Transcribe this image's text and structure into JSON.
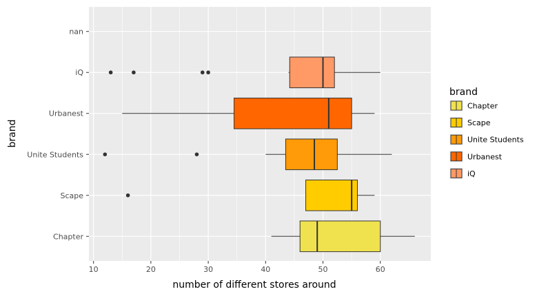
{
  "chart_data": {
    "type": "boxplot",
    "orientation": "horizontal",
    "xlabel": "number of different stores around",
    "ylabel": "brand",
    "xlim": [
      9.2,
      68.8
    ],
    "x_ticks": [
      10,
      20,
      30,
      40,
      50,
      60
    ],
    "grid": true,
    "legend": {
      "title": "brand",
      "position": "right"
    },
    "categories": [
      "Chapter",
      "Scape",
      "Unite Students",
      "Urbanest",
      "iQ",
      "nan"
    ],
    "legend_entries": [
      {
        "label": "Chapter",
        "color": "#F0E24F"
      },
      {
        "label": "Scape",
        "color": "#FFCC00"
      },
      {
        "label": "Unite Students",
        "color": "#FF9A08"
      },
      {
        "label": "Urbanest",
        "color": "#FF6600"
      },
      {
        "label": "iQ",
        "color": "#FF9966"
      }
    ],
    "boxes": [
      {
        "category": "Chapter",
        "whisker_low": 41,
        "q1": 46,
        "median": 49,
        "q3": 60,
        "whisker_high": 66,
        "outliers": [],
        "color": "#F0E24F"
      },
      {
        "category": "Scape",
        "whisker_low": 47,
        "q1": 47,
        "median": 55,
        "q3": 56,
        "whisker_high": 59,
        "outliers": [
          16
        ],
        "color": "#FFCC00"
      },
      {
        "category": "Unite Students",
        "whisker_low": 40,
        "q1": 43.5,
        "median": 48.5,
        "q3": 52.5,
        "whisker_high": 62,
        "outliers": [
          12,
          28
        ],
        "color": "#FF9A08"
      },
      {
        "category": "Urbanest",
        "whisker_low": 15,
        "q1": 34.5,
        "median": 51,
        "q3": 55,
        "whisker_high": 59,
        "outliers": [],
        "color": "#FF6600"
      },
      {
        "category": "iQ",
        "whisker_low": 44,
        "q1": 44.2,
        "median": 50,
        "q3": 52,
        "whisker_high": 60,
        "outliers": [
          13,
          17,
          29,
          30
        ],
        "color": "#FF9966"
      },
      {
        "category": "nan",
        "whisker_low": null,
        "q1": null,
        "median": null,
        "q3": null,
        "whisker_high": null,
        "outliers": [],
        "color": null
      }
    ],
    "colors": {
      "panel_background": "#EBEBEB",
      "grid": "#FFFFFF",
      "line": "#333333"
    }
  }
}
